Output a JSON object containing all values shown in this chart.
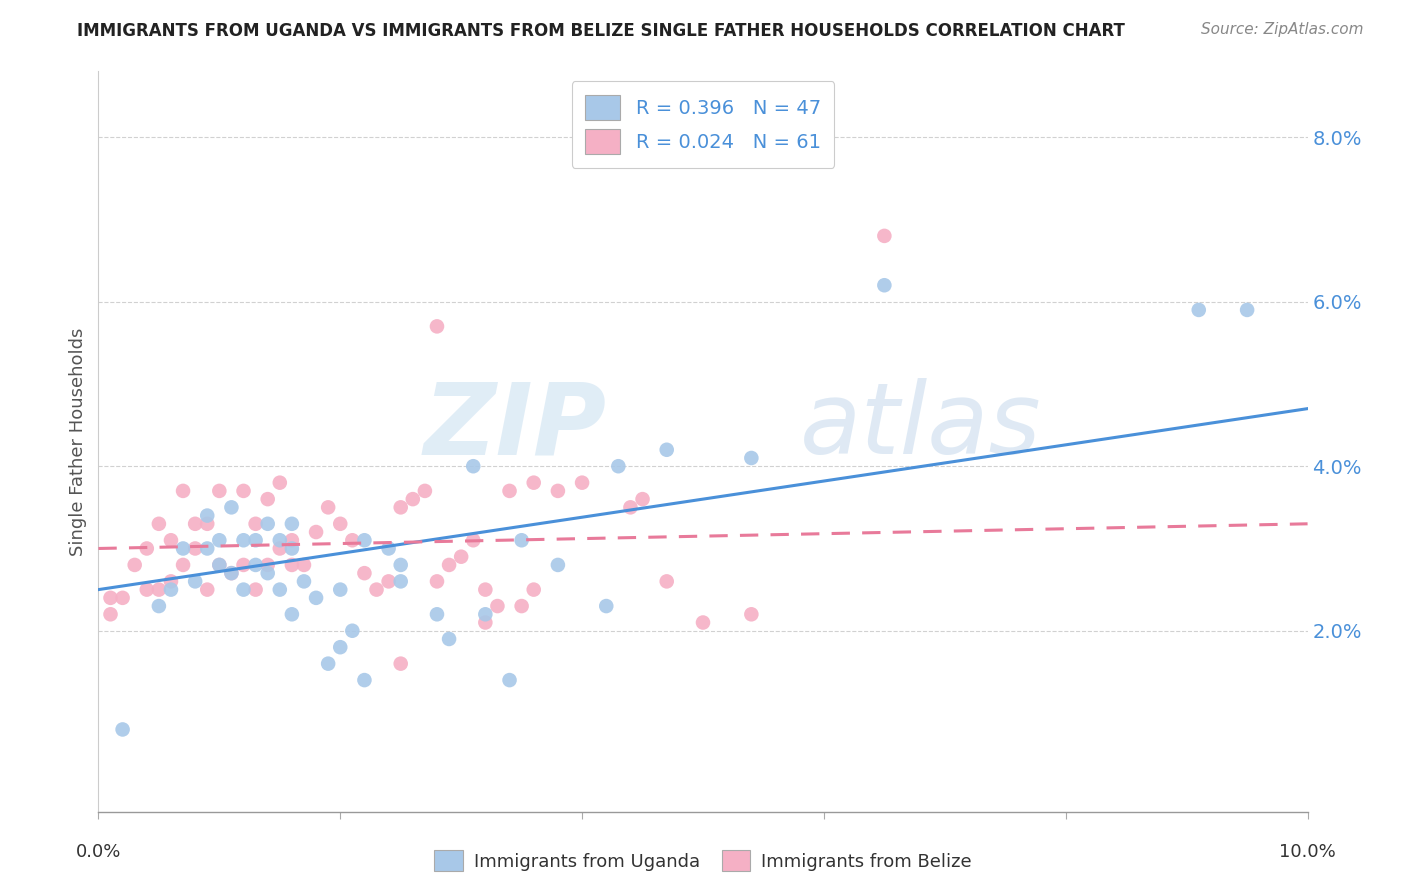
{
  "title": "IMMIGRANTS FROM UGANDA VS IMMIGRANTS FROM BELIZE SINGLE FATHER HOUSEHOLDS CORRELATION CHART",
  "source": "Source: ZipAtlas.com",
  "ylabel": "Single Father Households",
  "xlim": [
    0.0,
    0.1
  ],
  "ylim": [
    -0.002,
    0.088
  ],
  "yticks": [
    0.02,
    0.04,
    0.06,
    0.08
  ],
  "ytick_labels": [
    "2.0%",
    "4.0%",
    "6.0%",
    "8.0%"
  ],
  "xticks": [
    0.0,
    0.02,
    0.04,
    0.06,
    0.08,
    0.1
  ],
  "uganda_R": 0.396,
  "uganda_N": 47,
  "belize_R": 0.024,
  "belize_N": 61,
  "uganda_color": "#a8c8e8",
  "belize_color": "#f5b0c5",
  "uganda_line_color": "#4a90d9",
  "belize_line_color": "#e87a9a",
  "watermark_zip": "ZIP",
  "watermark_atlas": "atlas",
  "background_color": "#ffffff",
  "title_color": "#222222",
  "source_color": "#888888",
  "ylabel_color": "#555555",
  "tick_label_color": "#4a90d9",
  "bottom_legend_color": "#333333",
  "grid_color": "#cccccc",
  "legend_text_color": "#4a90d9",
  "uganda_x": [
    0.002,
    0.005,
    0.006,
    0.007,
    0.008,
    0.009,
    0.009,
    0.01,
    0.01,
    0.011,
    0.011,
    0.012,
    0.012,
    0.013,
    0.014,
    0.014,
    0.015,
    0.015,
    0.016,
    0.016,
    0.017,
    0.018,
    0.019,
    0.02,
    0.021,
    0.022,
    0.024,
    0.025,
    0.028,
    0.029,
    0.032,
    0.034,
    0.038,
    0.042,
    0.047,
    0.054,
    0.065,
    0.091,
    0.095,
    0.013,
    0.016,
    0.02,
    0.022,
    0.025,
    0.031,
    0.035,
    0.043
  ],
  "uganda_y": [
    0.008,
    0.023,
    0.025,
    0.03,
    0.026,
    0.03,
    0.034,
    0.028,
    0.031,
    0.027,
    0.035,
    0.031,
    0.025,
    0.028,
    0.033,
    0.027,
    0.025,
    0.031,
    0.033,
    0.022,
    0.026,
    0.024,
    0.016,
    0.018,
    0.02,
    0.014,
    0.03,
    0.028,
    0.022,
    0.019,
    0.022,
    0.014,
    0.028,
    0.023,
    0.042,
    0.041,
    0.062,
    0.059,
    0.059,
    0.031,
    0.03,
    0.025,
    0.031,
    0.026,
    0.04,
    0.031,
    0.04
  ],
  "belize_x": [
    0.001,
    0.001,
    0.002,
    0.003,
    0.004,
    0.004,
    0.005,
    0.005,
    0.006,
    0.006,
    0.007,
    0.007,
    0.008,
    0.008,
    0.009,
    0.009,
    0.01,
    0.01,
    0.011,
    0.012,
    0.012,
    0.013,
    0.013,
    0.014,
    0.014,
    0.015,
    0.015,
    0.016,
    0.016,
    0.017,
    0.018,
    0.019,
    0.02,
    0.021,
    0.022,
    0.023,
    0.024,
    0.025,
    0.026,
    0.027,
    0.028,
    0.029,
    0.03,
    0.031,
    0.032,
    0.033,
    0.034,
    0.035,
    0.036,
    0.038,
    0.04,
    0.044,
    0.045,
    0.047,
    0.05,
    0.054,
    0.065,
    0.025,
    0.028,
    0.032,
    0.036
  ],
  "belize_y": [
    0.024,
    0.022,
    0.024,
    0.028,
    0.03,
    0.025,
    0.033,
    0.025,
    0.026,
    0.031,
    0.028,
    0.037,
    0.03,
    0.033,
    0.033,
    0.025,
    0.037,
    0.028,
    0.027,
    0.028,
    0.037,
    0.033,
    0.025,
    0.036,
    0.028,
    0.038,
    0.03,
    0.028,
    0.031,
    0.028,
    0.032,
    0.035,
    0.033,
    0.031,
    0.027,
    0.025,
    0.026,
    0.035,
    0.036,
    0.037,
    0.026,
    0.028,
    0.029,
    0.031,
    0.025,
    0.023,
    0.037,
    0.023,
    0.025,
    0.037,
    0.038,
    0.035,
    0.036,
    0.026,
    0.021,
    0.022,
    0.068,
    0.016,
    0.057,
    0.021,
    0.038
  ]
}
